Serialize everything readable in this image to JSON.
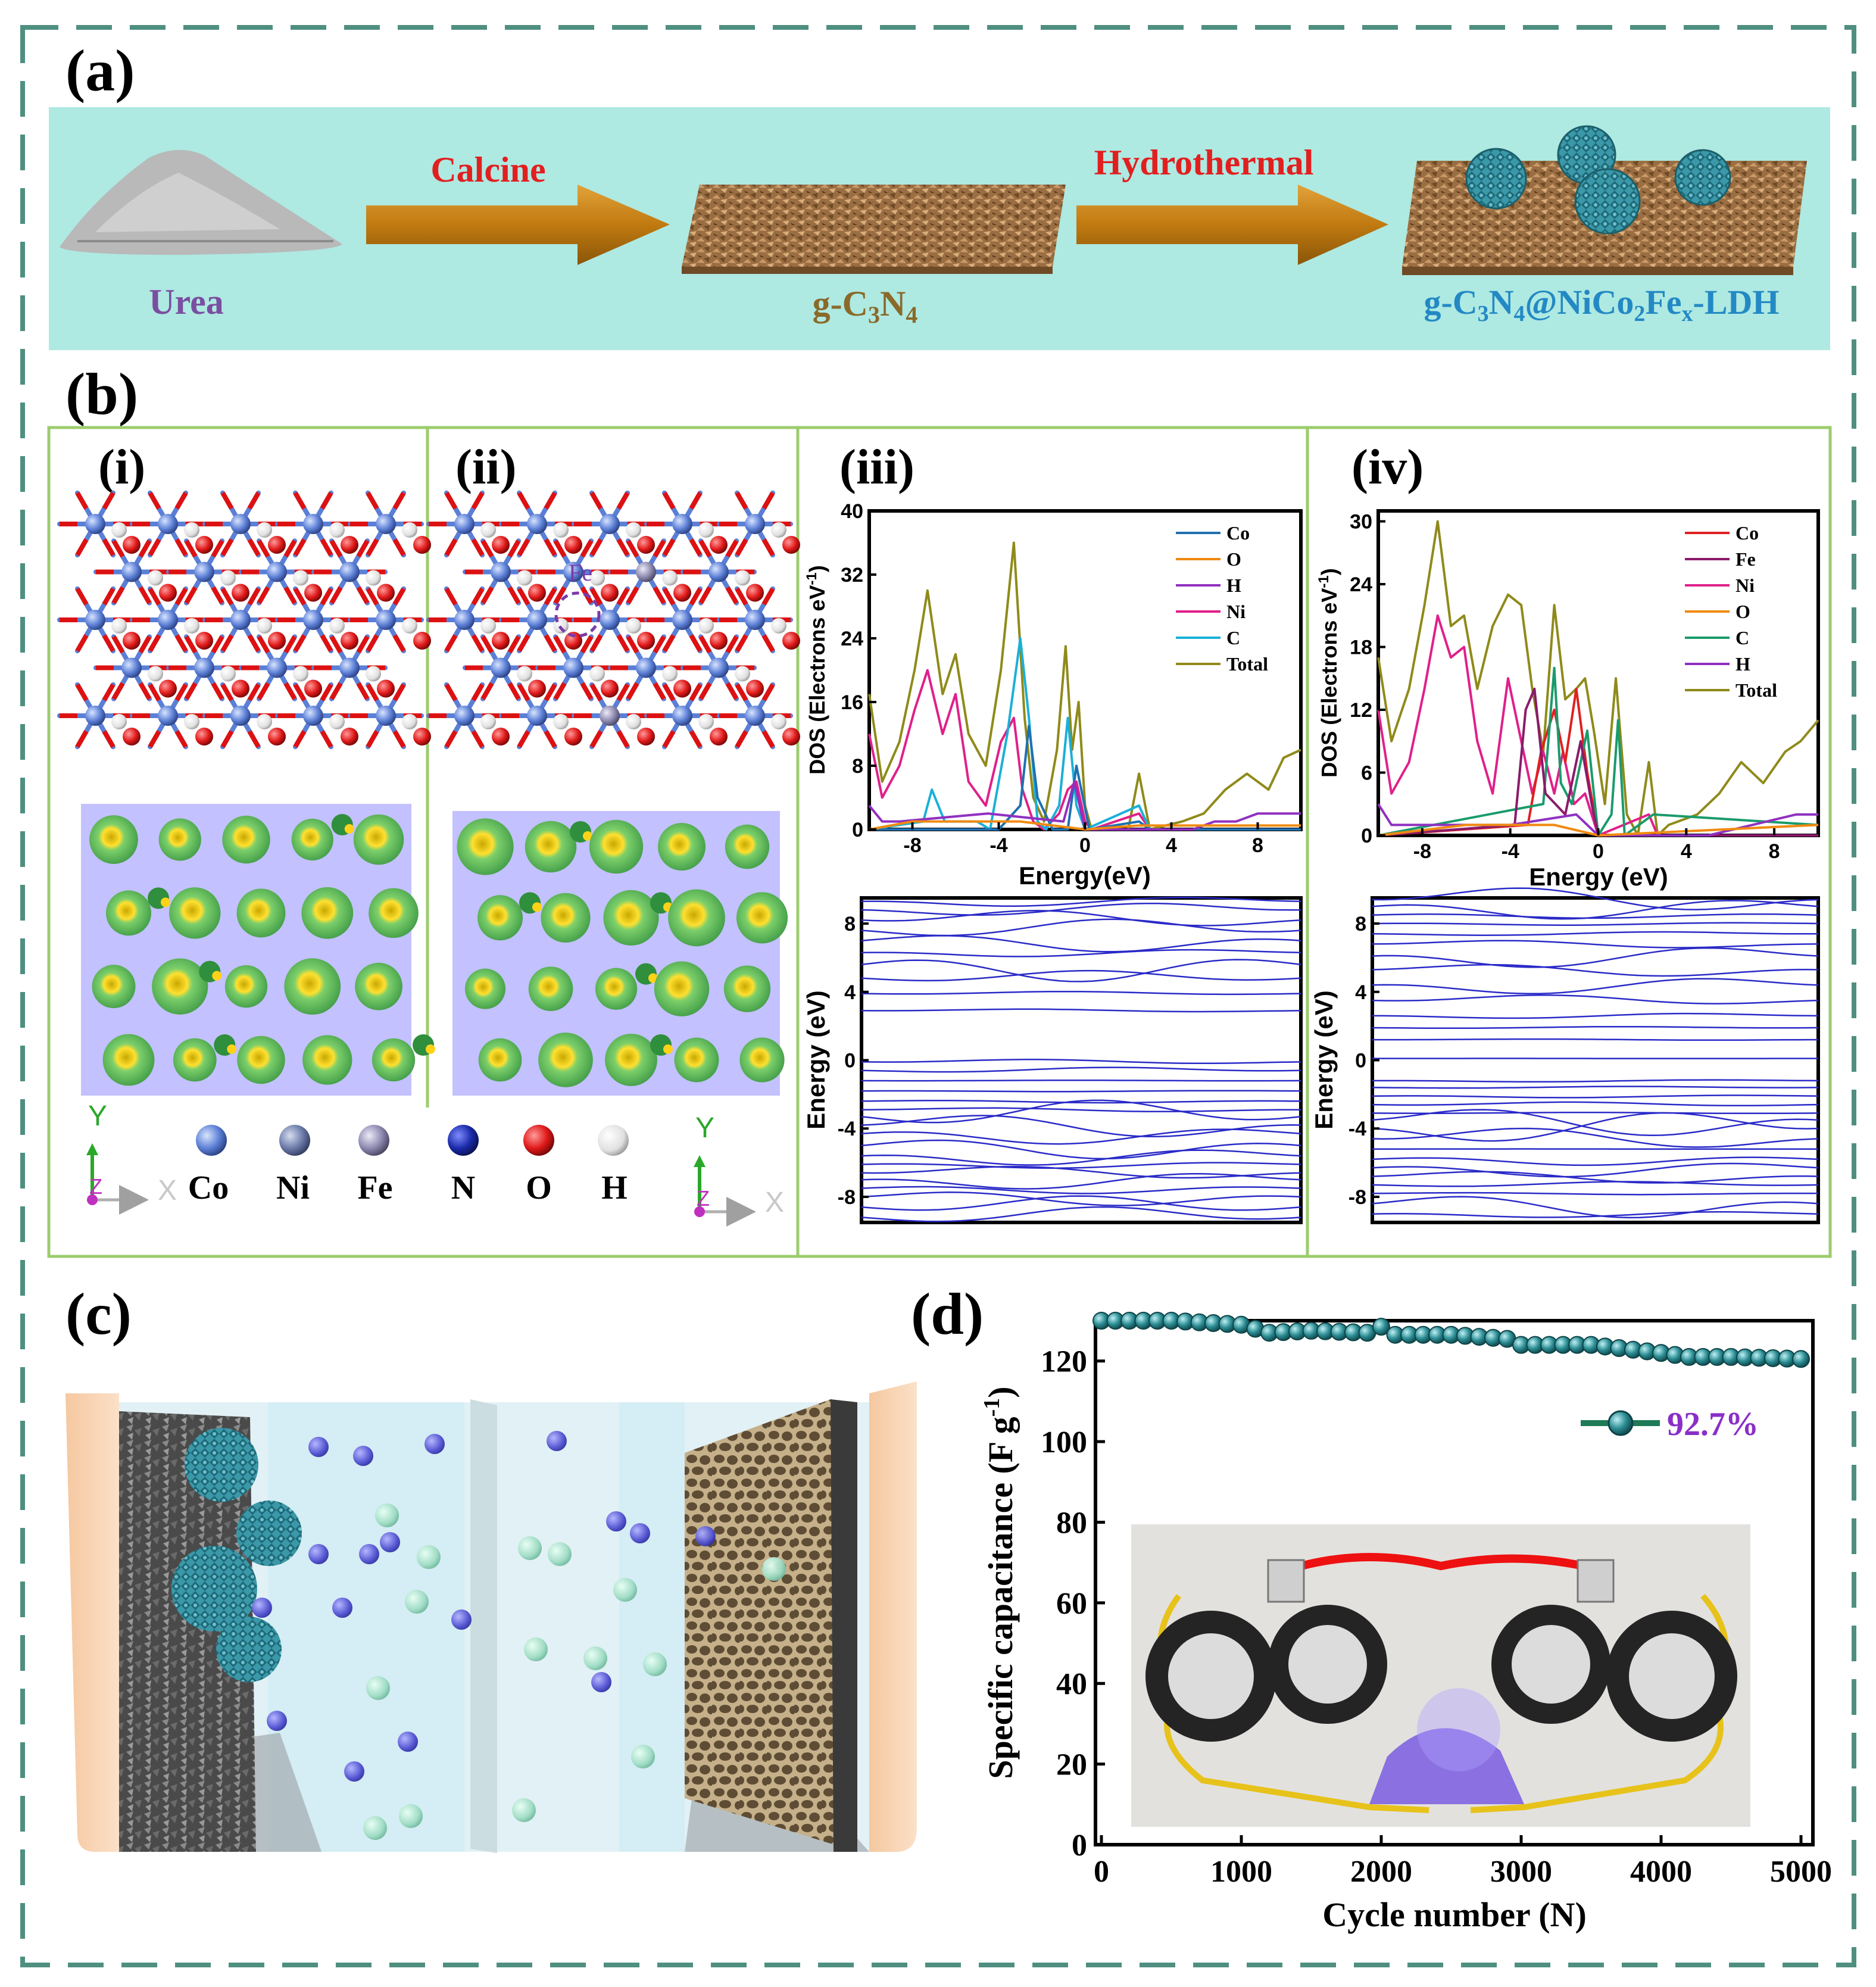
{
  "colors": {
    "frame": "#4f8f80",
    "banner_bg": "#aee9e2",
    "panel_border": "#9ccc6e",
    "arrow": "#c07a10",
    "label_red": "#e21f1f",
    "urea_text": "#7a4ea0",
    "gc3n4_text": "#8a6a2a",
    "ldh_text": "#2389c4",
    "percent_text": "#8a2fc8",
    "series_teal": "#2a8c93",
    "band_blue": "#2a2ac8",
    "atom_co": "#5b7fd6",
    "atom_ni": "#6b7aa8",
    "atom_fe": "#8c88b0",
    "atom_n": "#1a2aa8",
    "atom_o": "#e01818",
    "atom_h": "#e8e8e8"
  },
  "panel_a": {
    "label": "(a)",
    "step1": "Calcine",
    "step2": "Hydrothermal",
    "node1": "Urea",
    "node2_main": "g-C",
    "node2_sub1": "3",
    "node2_mid": "N",
    "node2_sub2": "4",
    "node3_parts": [
      "g-C",
      "3",
      "N",
      "4",
      "@NiCo",
      "2",
      "Fe",
      "x",
      "-LDH"
    ]
  },
  "panel_b": {
    "label": "(b)",
    "sub_i": "(i)",
    "sub_ii": "(ii)",
    "sub_iii": "(iii)",
    "sub_iv": "(iv)",
    "fe_label": "Fe",
    "legend_atoms": [
      "Co",
      "Ni",
      "Fe",
      "N",
      "O",
      "H"
    ],
    "axis_y": "Y",
    "axis_z": "Z",
    "axis_x": "X"
  },
  "dos_iii": {
    "ylabel": "DOS (Electrons eV",
    "ylabel_sup": "-1",
    "ylabel_close": ")",
    "xlabel": "Energy(eV)",
    "yticks": [
      "0",
      "8",
      "16",
      "24",
      "32",
      "40"
    ],
    "xticks": [
      "-8",
      "-4",
      "0",
      "4",
      "8"
    ],
    "legend": [
      "Co",
      "O",
      "H",
      "Ni",
      "C",
      "Total"
    ]
  },
  "dos_iv": {
    "ylabel": "DOS (Electrons eV",
    "ylabel_sup": "-1",
    "ylabel_close": ")",
    "xlabel": "Energy (eV)",
    "yticks": [
      "0",
      "6",
      "12",
      "18",
      "24",
      "30"
    ],
    "xticks": [
      "-8",
      "-4",
      "0",
      "4",
      "8"
    ],
    "legend": [
      "Co",
      "Fe",
      "Ni",
      "O",
      "C",
      "H",
      "Total"
    ]
  },
  "band_iii": {
    "ylabel": "Energy (eV)",
    "yticks": [
      "8",
      "4",
      "0",
      "-4",
      "-8"
    ]
  },
  "band_iv": {
    "ylabel": "Energy (eV)",
    "yticks": [
      "8",
      "4",
      "0",
      "-4",
      "-8"
    ]
  },
  "panel_c": {
    "label": "(c)"
  },
  "panel_d": {
    "label": "(d)",
    "retention": "92.7%",
    "ylabel_main": "Specific capacitance (F g",
    "ylabel_sup": "-1",
    "ylabel_close": ")",
    "xlabel": "Cycle number (N)"
  },
  "chart_data": [
    {
      "type": "line",
      "panel": "(b)(iii) DOS",
      "xlabel": "Energy(eV)",
      "ylabel": "DOS (Electrons eV-1)",
      "xlim": [
        -10,
        10
      ],
      "ylim": [
        0,
        40
      ],
      "series": [
        {
          "name": "Total",
          "color": "#8f8a1a",
          "x": [
            -10,
            -9.4,
            -8.6,
            -7.9,
            -7.3,
            -6.6,
            -6.0,
            -5.4,
            -4.6,
            -3.9,
            -3.3,
            -2.8,
            -2.4,
            -1.9,
            -1.3,
            -0.9,
            -0.6,
            -0.3,
            0,
            0.3,
            2.0,
            2.5,
            3.0,
            4.5,
            5.5,
            6.5,
            7.5,
            8.5,
            9.2,
            10
          ],
          "y": [
            17,
            6,
            11,
            20,
            30,
            17,
            22,
            12,
            8,
            20,
            36,
            14,
            4,
            1,
            10,
            23,
            10,
            16,
            3,
            0,
            0,
            7,
            0,
            1,
            2,
            5,
            7,
            5,
            9,
            10
          ]
        },
        {
          "name": "Ni",
          "color": "#e0208a",
          "x": [
            -10,
            -9.4,
            -8.6,
            -7.9,
            -7.3,
            -6.6,
            -6.0,
            -5.4,
            -4.6,
            -3.9,
            -3.3,
            -2.9,
            -2.4,
            -1.9,
            -1.2,
            -0.8,
            -0.4,
            0,
            0.3,
            2.5,
            3.0,
            10
          ],
          "y": [
            12,
            4,
            8,
            15,
            20,
            12,
            17,
            6,
            3,
            11,
            14,
            5,
            1,
            0,
            2,
            5,
            6,
            1,
            0,
            2,
            0,
            0
          ]
        },
        {
          "name": "C",
          "color": "#1ab0d8",
          "x": [
            -10,
            -7.5,
            -7.1,
            -6.5,
            -5.0,
            -4.4,
            -3.6,
            -3.0,
            -2.6,
            -2.2,
            -1.8,
            -1.2,
            -0.8,
            -0.4,
            0,
            2.5,
            3.0,
            10
          ],
          "y": [
            0,
            1,
            5,
            1,
            1,
            0,
            12,
            24,
            14,
            1,
            0,
            3,
            14,
            3,
            0,
            3,
            0,
            0
          ]
        },
        {
          "name": "Co",
          "color": "#2070b0",
          "x": [
            -10,
            -4.0,
            -3.0,
            -2.6,
            -2.2,
            -1.5,
            -0.8,
            -0.4,
            -0.1,
            0.2,
            2.5,
            3,
            10
          ],
          "y": [
            0,
            0,
            3,
            13,
            4,
            0,
            0,
            8,
            4,
            0,
            1,
            0,
            0
          ]
        },
        {
          "name": "H",
          "color": "#9030c0",
          "x": [
            -10,
            -9.4,
            -8.6,
            -4.5,
            -1.0,
            -0.5,
            0,
            5,
            6,
            7,
            8,
            9,
            10
          ],
          "y": [
            3,
            1,
            1,
            2,
            1,
            6,
            0,
            0,
            1,
            1,
            2,
            2,
            2
          ]
        },
        {
          "name": "O",
          "color": "#f08a10",
          "x": [
            -10,
            -8,
            -3,
            0,
            2.5,
            10
          ],
          "y": [
            0,
            1,
            1,
            0,
            0.5,
            0.5
          ]
        }
      ]
    },
    {
      "type": "line",
      "panel": "(b)(iv) DOS",
      "xlabel": "Energy (eV)",
      "ylabel": "DOS (Electrons eV-1)",
      "xlim": [
        -10,
        10
      ],
      "ylim": [
        0,
        31
      ],
      "series": [
        {
          "name": "Total",
          "color": "#8f8a1a",
          "x": [
            -10,
            -9.4,
            -8.6,
            -7.9,
            -7.3,
            -6.7,
            -6.1,
            -5.5,
            -4.8,
            -4.1,
            -3.5,
            -3.0,
            -2.5,
            -2.0,
            -1.5,
            -1.0,
            -0.6,
            -0.2,
            0.3,
            0.8,
            1.3,
            1.8,
            2.3,
            2.7,
            3.2,
            4.5,
            5.5,
            6.5,
            7.5,
            8.5,
            9.2,
            10
          ],
          "y": [
            17,
            9,
            14,
            22,
            30,
            20,
            21,
            14,
            20,
            23,
            22,
            14,
            8,
            22,
            13,
            14,
            15,
            10,
            3,
            15,
            2,
            0,
            7,
            0,
            1,
            2,
            4,
            7,
            5,
            8,
            9,
            11
          ]
        },
        {
          "name": "Ni",
          "color": "#e0208a",
          "x": [
            -10,
            -9.4,
            -8.6,
            -7.9,
            -7.3,
            -6.7,
            -6.1,
            -5.5,
            -4.8,
            -4.1,
            -3.6,
            -3.0,
            -2.5,
            -2.0,
            -1.6,
            -1.1,
            -0.6,
            0,
            2.3,
            2.7,
            10
          ],
          "y": [
            12,
            4,
            7,
            14,
            21,
            17,
            18,
            9,
            4,
            15,
            10,
            4,
            8,
            4,
            8,
            3,
            4,
            0,
            2,
            0,
            0
          ]
        },
        {
          "name": "Co",
          "color": "#e02020",
          "x": [
            -10,
            -3.2,
            -2.6,
            -2.0,
            -1.5,
            -1.0,
            -0.5,
            0,
            10
          ],
          "y": [
            0,
            1,
            8,
            12,
            7,
            14,
            6,
            0,
            0
          ]
        },
        {
          "name": "C",
          "color": "#1a9b6b",
          "x": [
            -10,
            -2.5,
            -2.0,
            -1.7,
            -1.2,
            -0.5,
            0,
            0.6,
            0.9,
            1.2,
            2.5,
            10
          ],
          "y": [
            0,
            3,
            16,
            5,
            3,
            10,
            0,
            2,
            11,
            0,
            2,
            1
          ]
        },
        {
          "name": "Fe",
          "color": "#8a1a6a",
          "x": [
            -10,
            -3.8,
            -3.3,
            -2.9,
            -2.4,
            -1.5,
            -0.8,
            -0.3,
            0,
            10
          ],
          "y": [
            0,
            1,
            12,
            14,
            4,
            2,
            9,
            3,
            0,
            0
          ]
        },
        {
          "name": "H",
          "color": "#9030c0",
          "x": [
            -10,
            -9.4,
            -8.6,
            -4.0,
            -1.0,
            0,
            5,
            7,
            9,
            10
          ],
          "y": [
            3,
            1,
            1,
            1,
            2,
            0,
            0,
            1,
            2,
            2
          ]
        },
        {
          "name": "O",
          "color": "#f08a10",
          "x": [
            -10,
            -6,
            -2,
            0,
            10
          ],
          "y": [
            0,
            1,
            1,
            0,
            1
          ]
        }
      ]
    },
    {
      "type": "line",
      "panel": "(d) cycling stability",
      "xlabel": "Cycle number (N)",
      "ylabel": "Specific capacitance (F g-1)",
      "xlim": [
        0,
        5000
      ],
      "ylim": [
        0,
        130
      ],
      "xticks": [
        "0",
        "1000",
        "2000",
        "3000",
        "4000",
        "5000"
      ],
      "yticks": [
        "0",
        "20",
        "40",
        "60",
        "80",
        "100",
        "120"
      ],
      "series": [
        {
          "name": "92.7%",
          "color": "#2a8c93",
          "x": [
            0,
            500,
            1000,
            1200,
            1500,
            1900,
            2000,
            2100,
            2500,
            2900,
            3000,
            3100,
            3500,
            4000,
            4200,
            4500,
            5000
          ],
          "y": [
            130,
            130,
            129,
            127,
            127.5,
            127,
            128.5,
            126.5,
            126.5,
            125.5,
            124,
            124,
            124,
            122,
            121,
            121,
            120.5
          ]
        }
      ]
    }
  ]
}
